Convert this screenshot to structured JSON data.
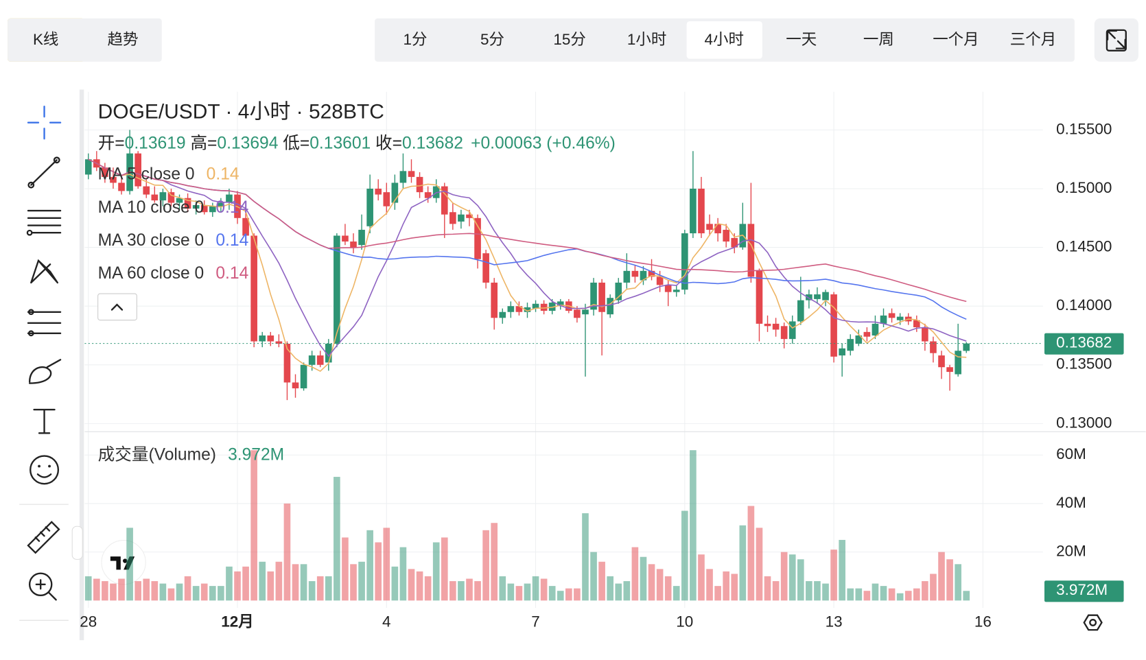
{
  "tabs": [
    "K线",
    "趋势"
  ],
  "active_tab": 0,
  "intervals": [
    "1分",
    "5分",
    "15分",
    "1小时",
    "4小时",
    "一天",
    "一周",
    "一个月",
    "三个月"
  ],
  "active_interval": 4,
  "chart_data": {
    "type": "candlestick",
    "title": "DOGE/USDT · 4小时 · 528BTC",
    "ohlc_labels": [
      "开=",
      "高=",
      "低=",
      "收="
    ],
    "change": "+0.00063 (+0.46%)",
    "indicators": [
      {
        "label": "MA 5 close 0",
        "value": 0.14,
        "period": 5,
        "color": "#eeb565"
      },
      {
        "label": "MA 10 close 0",
        "value": 0.14,
        "period": 10,
        "color": "#8e63c2"
      },
      {
        "label": "MA 30 close 0",
        "value": 0.14,
        "period": 30,
        "color": "#5474ee"
      },
      {
        "label": "MA 60 close 0",
        "value": 0.14,
        "period": 60,
        "color": "#cf5b80"
      }
    ],
    "volume_title": "成交量(Volume)",
    "volume_label": "3.972M",
    "up_color": "#2e9474",
    "down_color": "#e4474d",
    "open": [
      0.1512,
      0.1525,
      0.1518,
      0.151,
      0.1505,
      0.1498,
      0.153,
      0.1502,
      0.1495,
      0.149,
      0.1497,
      0.1488,
      0.1492,
      0.1483,
      0.1486,
      0.148,
      0.1485,
      0.1488,
      0.1495,
      0.1475,
      0.146,
      0.137,
      0.1375,
      0.137,
      0.1368,
      0.1335,
      0.133,
      0.135,
      0.1358,
      0.1352,
      0.1368,
      0.146,
      0.1455,
      0.1452,
      0.1468,
      0.15,
      0.1497,
      0.1488,
      0.1505,
      0.1515,
      0.151,
      0.1497,
      0.1492,
      0.1502,
      0.148,
      0.1472,
      0.1478,
      0.1475,
      0.1445,
      0.142,
      0.139,
      0.1395,
      0.14,
      0.1395,
      0.1398,
      0.1402,
      0.1396,
      0.14,
      0.1404,
      0.1397,
      0.1393,
      0.1397,
      0.142,
      0.1393,
      0.1405,
      0.142,
      0.143,
      0.1422,
      0.143,
      0.1425,
      0.1418,
      0.1412,
      0.1414,
      0.1462,
      0.15,
      0.147,
      0.147,
      0.1465,
      0.1458,
      0.145,
      0.147,
      0.143,
      0.1385,
      0.1385,
      0.1383,
      0.1372,
      0.1387,
      0.1405,
      0.1406,
      0.1405,
      0.141,
      0.1358,
      0.1362,
      0.1368,
      0.1378,
      0.1375,
      0.1385,
      0.1394,
      0.1388,
      0.1391,
      0.1388,
      0.1382,
      0.137,
      0.1358,
      0.1348,
      0.1342,
      0.13619
    ],
    "high": [
      0.153,
      0.1532,
      0.1522,
      0.1518,
      0.1512,
      0.155,
      0.1532,
      0.1508,
      0.1502,
      0.15,
      0.15,
      0.1495,
      0.1496,
      0.149,
      0.149,
      0.1488,
      0.1492,
      0.15,
      0.1498,
      0.148,
      0.1462,
      0.1378,
      0.1378,
      0.1376,
      0.137,
      0.1342,
      0.1352,
      0.1362,
      0.1362,
      0.1372,
      0.1462,
      0.147,
      0.1462,
      0.1478,
      0.1512,
      0.1508,
      0.1505,
      0.1512,
      0.153,
      0.1525,
      0.1514,
      0.1502,
      0.1508,
      0.1505,
      0.1488,
      0.1482,
      0.1482,
      0.1478,
      0.1448,
      0.1424,
      0.1398,
      0.1404,
      0.1404,
      0.1403,
      0.1405,
      0.1405,
      0.1406,
      0.1406,
      0.1406,
      0.14,
      0.1402,
      0.1424,
      0.1423,
      0.141,
      0.1424,
      0.1445,
      0.1435,
      0.1434,
      0.144,
      0.143,
      0.1422,
      0.1418,
      0.1465,
      0.1532,
      0.151,
      0.1478,
      0.1475,
      0.147,
      0.1462,
      0.1488,
      0.1505,
      0.1432,
      0.1392,
      0.139,
      0.1386,
      0.1392,
      0.1425,
      0.1414,
      0.1416,
      0.1414,
      0.1412,
      0.1368,
      0.1376,
      0.138,
      0.1382,
      0.1392,
      0.1398,
      0.1398,
      0.1394,
      0.1394,
      0.1392,
      0.1385,
      0.1374,
      0.1362,
      0.135,
      0.1385,
      0.13694
    ],
    "low": [
      0.1508,
      0.1515,
      0.1505,
      0.15,
      0.1495,
      0.1495,
      0.15,
      0.1492,
      0.1488,
      0.1485,
      0.1485,
      0.1482,
      0.148,
      0.1478,
      0.1478,
      0.1476,
      0.148,
      0.1482,
      0.147,
      0.1455,
      0.1365,
      0.1365,
      0.1366,
      0.1365,
      0.132,
      0.1322,
      0.1328,
      0.1345,
      0.1348,
      0.1345,
      0.1365,
      0.1452,
      0.1445,
      0.1448,
      0.1462,
      0.149,
      0.1478,
      0.1482,
      0.15,
      0.1505,
      0.1492,
      0.1488,
      0.1488,
      0.1458,
      0.1465,
      0.1466,
      0.1468,
      0.1432,
      0.1415,
      0.138,
      0.1385,
      0.139,
      0.1392,
      0.139,
      0.1395,
      0.1393,
      0.1393,
      0.1397,
      0.1394,
      0.1386,
      0.134,
      0.1392,
      0.1358,
      0.139,
      0.1402,
      0.1415,
      0.142,
      0.1418,
      0.1422,
      0.1412,
      0.14,
      0.1408,
      0.141,
      0.1458,
      0.1458,
      0.146,
      0.1455,
      0.145,
      0.1445,
      0.1448,
      0.142,
      0.137,
      0.1378,
      0.1374,
      0.1364,
      0.1368,
      0.1384,
      0.1398,
      0.1402,
      0.14,
      0.1352,
      0.134,
      0.1358,
      0.1366,
      0.137,
      0.1372,
      0.1382,
      0.1386,
      0.1384,
      0.1384,
      0.1378,
      0.1362,
      0.1352,
      0.1338,
      0.1328,
      0.134,
      0.13601
    ],
    "close": [
      0.1525,
      0.1518,
      0.151,
      0.1505,
      0.1498,
      0.153,
      0.1502,
      0.1495,
      0.149,
      0.1497,
      0.1488,
      0.1492,
      0.1483,
      0.1486,
      0.148,
      0.1485,
      0.1488,
      0.1495,
      0.1475,
      0.146,
      0.137,
      0.1375,
      0.137,
      0.1368,
      0.1335,
      0.133,
      0.135,
      0.1358,
      0.135,
      0.1368,
      0.146,
      0.1455,
      0.145,
      0.1465,
      0.15,
      0.1495,
      0.1485,
      0.1505,
      0.1515,
      0.151,
      0.1497,
      0.1492,
      0.1502,
      0.1478,
      0.147,
      0.1478,
      0.1475,
      0.144,
      0.142,
      0.139,
      0.1395,
      0.14,
      0.1395,
      0.1399,
      0.1402,
      0.1396,
      0.1403,
      0.1404,
      0.1396,
      0.139,
      0.1397,
      0.142,
      0.1395,
      0.1407,
      0.142,
      0.143,
      0.1425,
      0.143,
      0.1425,
      0.1418,
      0.1412,
      0.1414,
      0.1462,
      0.15,
      0.1462,
      0.1465,
      0.1462,
      0.1455,
      0.145,
      0.147,
      0.1425,
      0.1385,
      0.1383,
      0.138,
      0.1372,
      0.1387,
      0.1405,
      0.141,
      0.141,
      0.1412,
      0.1357,
      0.1364,
      0.1372,
      0.1375,
      0.1374,
      0.1385,
      0.1392,
      0.139,
      0.1391,
      0.1387,
      0.1382,
      0.137,
      0.136,
      0.1348,
      0.1344,
      0.1362,
      0.13682
    ],
    "volume": [
      10,
      9,
      8,
      7,
      9,
      30,
      8,
      9,
      8,
      7,
      5,
      7,
      10,
      6,
      7,
      6,
      6,
      14,
      12,
      14,
      62,
      16,
      12,
      16,
      40,
      15,
      15,
      8,
      10,
      10,
      51,
      26,
      15,
      16,
      29,
      24,
      30,
      14,
      22,
      13,
      12,
      10,
      24,
      26,
      8,
      8,
      9,
      8,
      29,
      32,
      10,
      7,
      6,
      7,
      10,
      9,
      6,
      4,
      5,
      5,
      36,
      20,
      16,
      10,
      7,
      8,
      22,
      18,
      15,
      13,
      10,
      6,
      37,
      62,
      19,
      13,
      6,
      12,
      11,
      31,
      39,
      30,
      10,
      8,
      20,
      19,
      17,
      8,
      8,
      7,
      21,
      25,
      5,
      5,
      4,
      7,
      6,
      5,
      3,
      4,
      5,
      8,
      11,
      20,
      17,
      15,
      3.972
    ],
    "ylim": [
      0.12931,
      0.15825
    ],
    "yticks": [
      {
        "value": 0.155,
        "label": "0.15500"
      },
      {
        "value": 0.15,
        "label": "0.15000"
      },
      {
        "value": 0.145,
        "label": "0.14500"
      },
      {
        "value": 0.14,
        "label": "0.14000"
      },
      {
        "value": 0.135,
        "label": "0.13500"
      },
      {
        "value": 0.13,
        "label": "0.13000"
      }
    ],
    "vlim": [
      0,
      66
    ],
    "vticks": [
      {
        "value": 60,
        "label": "60M"
      },
      {
        "value": 40,
        "label": "40M"
      },
      {
        "value": 20,
        "label": "20M"
      }
    ],
    "xticks": [
      {
        "value": 0,
        "label": "28"
      },
      {
        "value": 18,
        "label": "12月"
      },
      {
        "value": 36,
        "label": "4"
      },
      {
        "value": 54,
        "label": "7"
      },
      {
        "value": 72,
        "label": "10"
      },
      {
        "value": 90,
        "label": "13"
      },
      {
        "value": 108,
        "label": "16"
      }
    ],
    "grid": true
  }
}
